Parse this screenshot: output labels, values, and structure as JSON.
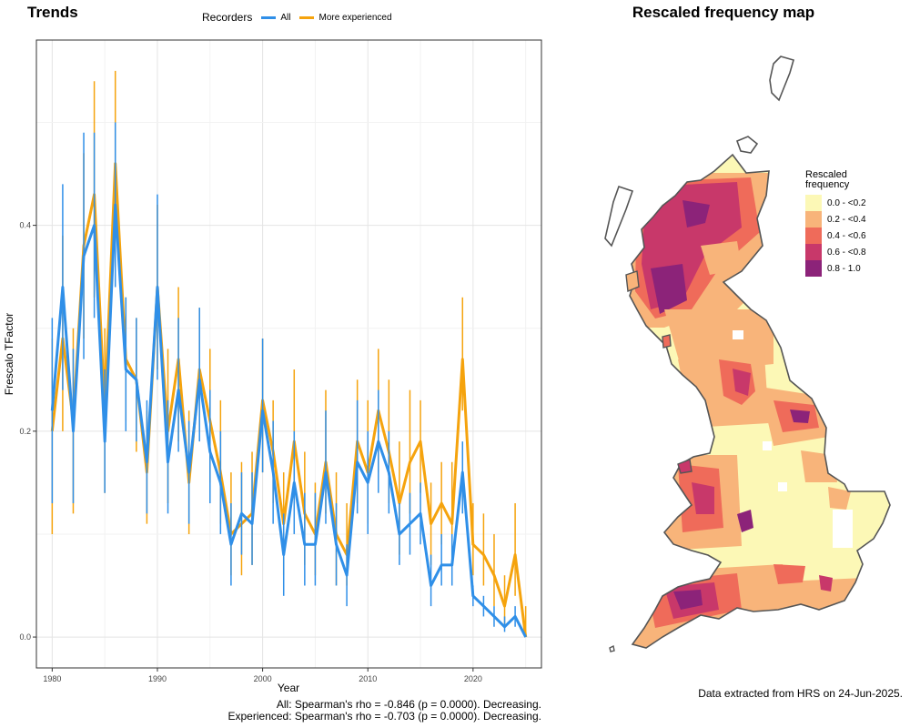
{
  "titles": {
    "trends": "Trends",
    "map": "Rescaled frequency map"
  },
  "legend": {
    "title": "Recorders",
    "items": [
      {
        "label": "All",
        "color": "#2f8fe8"
      },
      {
        "label": "More experienced",
        "color": "#f5a30d"
      }
    ]
  },
  "stats": {
    "all": "All: Spearman's rho = -0.846 (p = 0.0000). Decreasing.",
    "experienced": "Experienced: Spearman's rho = -0.703 (p = 0.0000). Decreasing."
  },
  "footnote": "Data extracted from HRS on 24-Jun-2025.",
  "map_legend": {
    "title_line1": "Rescaled",
    "title_line2": "frequency",
    "items": [
      {
        "label": "0.0 - <0.2",
        "color": "#fcf8b6"
      },
      {
        "label": "0.2 - <0.4",
        "color": "#f8b47a"
      },
      {
        "label": "0.4 - <0.6",
        "color": "#ef6b5a"
      },
      {
        "label": "0.6 - <0.8",
        "color": "#c8386a"
      },
      {
        "label": "0.8 - 1.0",
        "color": "#8c2379"
      }
    ]
  },
  "chart_data": {
    "type": "line",
    "xlabel": "Year",
    "ylabel": "Frescalo TFactor",
    "xlim": [
      1978.5,
      2026.5
    ],
    "ylim": [
      -0.03,
      0.58
    ],
    "xticks": [
      1980,
      1990,
      2000,
      2010,
      2020
    ],
    "yticks": [
      0.0,
      0.2,
      0.4
    ],
    "ytick_labels": [
      "0.0",
      "0.2",
      "0.4"
    ],
    "grid": true,
    "x": [
      1980,
      1981,
      1982,
      1983,
      1984,
      1985,
      1986,
      1987,
      1988,
      1989,
      1990,
      1991,
      1992,
      1993,
      1994,
      1995,
      1996,
      1997,
      1998,
      1999,
      2000,
      2001,
      2002,
      2003,
      2004,
      2005,
      2006,
      2007,
      2008,
      2009,
      2010,
      2011,
      2012,
      2013,
      2014,
      2015,
      2016,
      2017,
      2018,
      2019,
      2020,
      2021,
      2022,
      2023,
      2024,
      2025
    ],
    "series": [
      {
        "name": "All",
        "values": [
          0.22,
          0.34,
          0.2,
          0.37,
          0.4,
          0.19,
          0.42,
          0.26,
          0.25,
          0.17,
          0.34,
          0.17,
          0.24,
          0.16,
          0.25,
          0.18,
          0.15,
          0.09,
          0.12,
          0.11,
          0.22,
          0.16,
          0.08,
          0.15,
          0.09,
          0.09,
          0.16,
          0.09,
          0.06,
          0.17,
          0.15,
          0.19,
          0.16,
          0.1,
          0.11,
          0.12,
          0.05,
          0.07,
          0.07,
          0.16,
          0.04,
          0.03,
          0.02,
          0.01,
          0.02,
          0.0
        ],
        "lower": [
          0.13,
          0.24,
          0.13,
          0.27,
          0.31,
          0.14,
          0.34,
          0.2,
          0.19,
          0.12,
          0.25,
          0.12,
          0.18,
          0.11,
          0.19,
          0.13,
          0.1,
          0.05,
          0.08,
          0.07,
          0.16,
          0.11,
          0.04,
          0.1,
          0.05,
          0.05,
          0.11,
          0.05,
          0.03,
          0.12,
          0.1,
          0.14,
          0.12,
          0.07,
          0.08,
          0.09,
          0.03,
          0.05,
          0.05,
          0.12,
          0.03,
          0.02,
          0.01,
          0.005,
          0.01,
          0.0
        ],
        "upper": [
          0.31,
          0.44,
          0.28,
          0.49,
          0.49,
          0.26,
          0.5,
          0.33,
          0.31,
          0.23,
          0.43,
          0.23,
          0.31,
          0.21,
          0.32,
          0.24,
          0.2,
          0.13,
          0.16,
          0.16,
          0.29,
          0.21,
          0.12,
          0.2,
          0.14,
          0.14,
          0.22,
          0.13,
          0.09,
          0.23,
          0.2,
          0.24,
          0.2,
          0.13,
          0.14,
          0.15,
          0.08,
          0.1,
          0.1,
          0.19,
          0.05,
          0.04,
          0.03,
          0.02,
          0.03,
          0.0
        ]
      },
      {
        "name": "More experienced",
        "values": [
          0.2,
          0.29,
          0.21,
          0.38,
          0.43,
          0.22,
          0.46,
          0.27,
          0.25,
          0.16,
          0.34,
          0.2,
          0.27,
          0.15,
          0.26,
          0.21,
          0.16,
          0.1,
          0.11,
          0.12,
          0.23,
          0.18,
          0.11,
          0.19,
          0.12,
          0.1,
          0.17,
          0.1,
          0.08,
          0.19,
          0.16,
          0.22,
          0.18,
          0.13,
          0.17,
          0.19,
          0.11,
          0.13,
          0.11,
          0.27,
          0.09,
          0.08,
          0.06,
          0.03,
          0.08,
          0.0
        ],
        "lower": [
          0.1,
          0.2,
          0.12,
          0.29,
          0.33,
          0.14,
          0.36,
          0.21,
          0.18,
          0.11,
          0.26,
          0.13,
          0.19,
          0.1,
          0.2,
          0.15,
          0.11,
          0.06,
          0.06,
          0.07,
          0.16,
          0.13,
          0.06,
          0.13,
          0.07,
          0.06,
          0.12,
          0.05,
          0.05,
          0.13,
          0.11,
          0.16,
          0.13,
          0.08,
          0.12,
          0.14,
          0.07,
          0.09,
          0.07,
          0.22,
          0.06,
          0.05,
          0.03,
          0.01,
          0.04,
          0.0
        ],
        "upper": [
          0.29,
          0.39,
          0.3,
          0.47,
          0.54,
          0.3,
          0.55,
          0.33,
          0.31,
          0.22,
          0.42,
          0.28,
          0.34,
          0.22,
          0.32,
          0.28,
          0.23,
          0.16,
          0.17,
          0.18,
          0.29,
          0.23,
          0.16,
          0.26,
          0.18,
          0.15,
          0.24,
          0.16,
          0.13,
          0.25,
          0.23,
          0.28,
          0.25,
          0.19,
          0.24,
          0.23,
          0.15,
          0.17,
          0.17,
          0.33,
          0.13,
          0.12,
          0.1,
          0.06,
          0.13,
          0.03
        ]
      }
    ]
  }
}
